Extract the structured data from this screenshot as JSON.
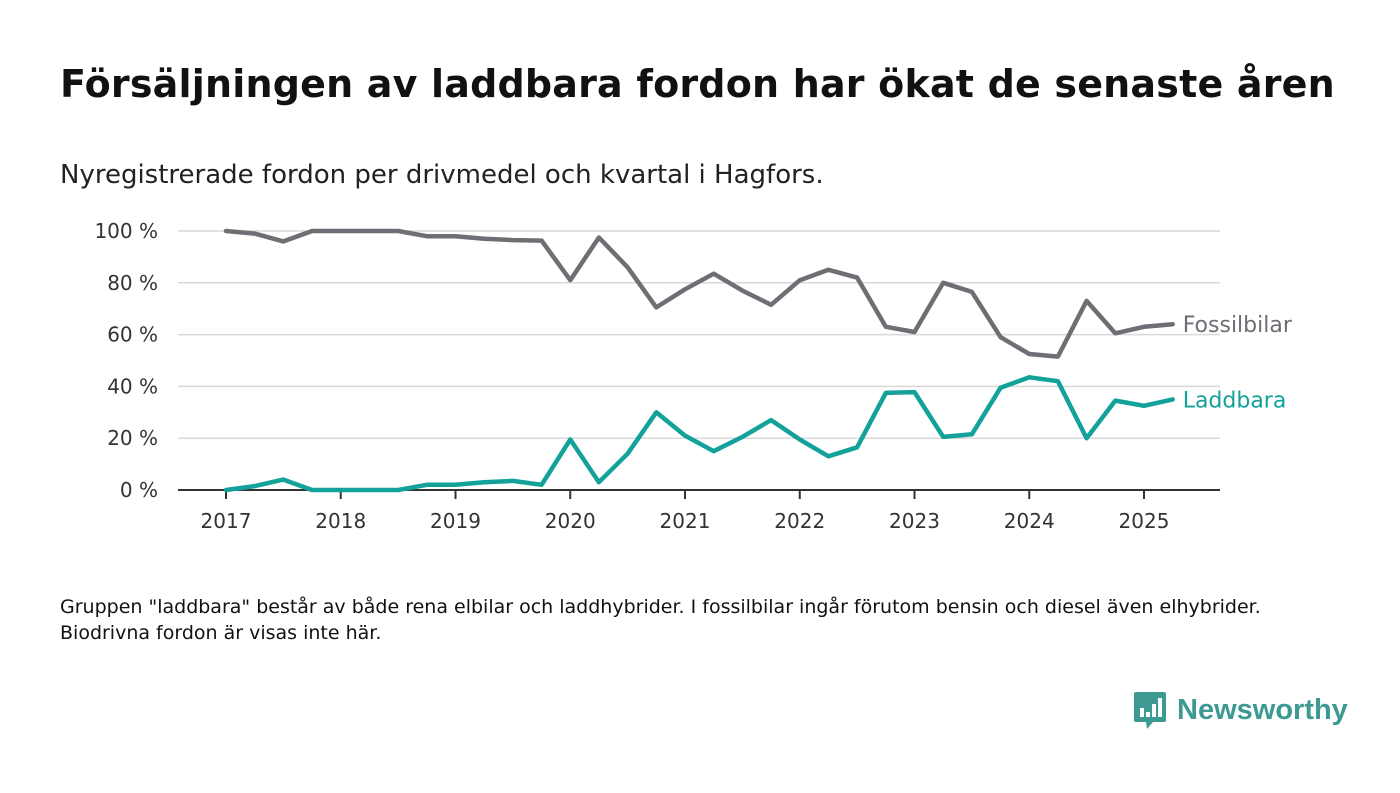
{
  "header": {
    "title": "Försäljningen av laddbara fordon har ökat de senaste åren",
    "subtitle": "Nyregistrerade fordon per drivmedel och kvartal i Hagfors."
  },
  "footnote": "Gruppen \"laddbara\" består av både rena elbilar och laddhybrider. I fossilbilar ingår förutom bensin och diesel även elhybrider. Biodrivna fordon är visas inte här.",
  "brand": {
    "name": "Newsworthy",
    "icon": "newsworthy-logo-icon",
    "color": "#3d9a92"
  },
  "chart_data": {
    "type": "line",
    "title": "Försäljningen av laddbara fordon har ökat de senaste åren",
    "subtitle": "Nyregistrerade fordon per drivmedel och kvartal i Hagfors.",
    "x": [
      "2017-Q1",
      "2017-Q2",
      "2017-Q3",
      "2017-Q4",
      "2018-Q1",
      "2018-Q2",
      "2018-Q3",
      "2018-Q4",
      "2019-Q1",
      "2019-Q2",
      "2019-Q3",
      "2019-Q4",
      "2020-Q1",
      "2020-Q2",
      "2020-Q3",
      "2020-Q4",
      "2021-Q1",
      "2021-Q2",
      "2021-Q3",
      "2021-Q4",
      "2022-Q1",
      "2022-Q2",
      "2022-Q3",
      "2022-Q4",
      "2023-Q1",
      "2023-Q2",
      "2023-Q3",
      "2023-Q4",
      "2024-Q1",
      "2024-Q2",
      "2024-Q3",
      "2024-Q4",
      "2025-Q1",
      "2025-Q2"
    ],
    "x_tick_labels": [
      "2017",
      "2018",
      "2019",
      "2020",
      "2021",
      "2022",
      "2023",
      "2024",
      "2025"
    ],
    "y_ticks": [
      0,
      20,
      40,
      60,
      80,
      100
    ],
    "y_tick_labels": [
      "0 %",
      "20 %",
      "40 %",
      "60 %",
      "80 %",
      "100 %"
    ],
    "ylim": [
      0,
      100
    ],
    "grid": "horizontal",
    "series": [
      {
        "name": "Fossilbilar",
        "color": "#6e6e75",
        "values": [
          100,
          99,
          96,
          100,
          100,
          100,
          100,
          98,
          98,
          97,
          96.5,
          96.3,
          81,
          97.5,
          86,
          70.5,
          77.5,
          83.5,
          77,
          71.5,
          81,
          85,
          82,
          63,
          61,
          80,
          76.5,
          59,
          52.5,
          51.5,
          73,
          60.5,
          63,
          64
        ]
      },
      {
        "name": "Laddbara",
        "color": "#12a299",
        "values": [
          0,
          1.5,
          4,
          0,
          0,
          0,
          0,
          2,
          2,
          3,
          3.5,
          2,
          19.5,
          3,
          14,
          30,
          21,
          15,
          20.5,
          27,
          19.5,
          13,
          16.5,
          37.5,
          37.8,
          20.5,
          21.5,
          39.5,
          43.5,
          42,
          20,
          34.5,
          32.5,
          35
        ]
      }
    ]
  }
}
